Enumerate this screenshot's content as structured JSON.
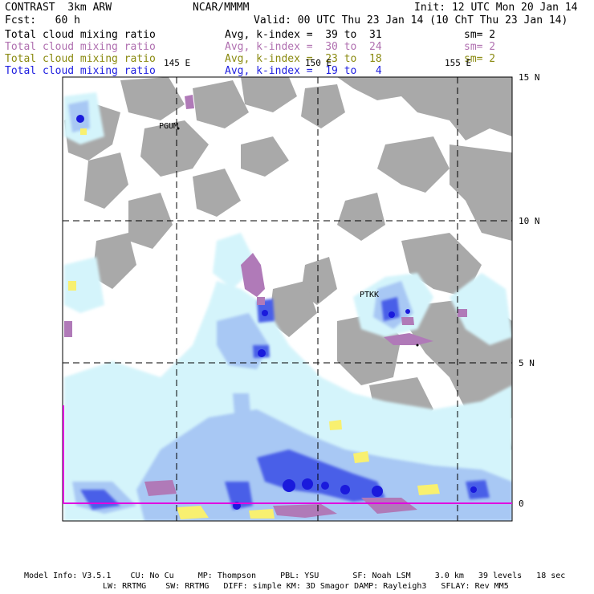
{
  "header": {
    "model": "CONTRAST  3km ARW",
    "agency": "NCAR/MMMM",
    "init": "Init: 12 UTC Mon 20 Jan 14",
    "fcst": "Fcst:   60 h",
    "valid": "Valid: 00 UTC Thu 23 Jan 14 (10 ChT Thu 23 Jan 14)"
  },
  "fields": [
    {
      "name": "Total cloud mixing ratio",
      "range": "Avg, k-index =  39 to  31",
      "sm": "sm= 2",
      "color": "#000000"
    },
    {
      "name": "Total cloud mixing ratio",
      "range": "Avg, k-index =  30 to  24",
      "sm": "sm= 2",
      "color": "#b070b0"
    },
    {
      "name": "Total cloud mixing ratio",
      "range": "Avg, k-index =  23 to  18",
      "sm": "sm= 2",
      "color": "#8a8a10"
    },
    {
      "name": "Total cloud mixing ratio",
      "range": "Avg, k-index =  19 to   4",
      "sm": "",
      "color": "#2020e0"
    }
  ],
  "lon_labels": [
    "145 E",
    "150 E",
    "155 E"
  ],
  "lat_labels": [
    "15 N",
    "10 N",
    "5 N",
    "0"
  ],
  "places": [
    "PGUM",
    "PTKK"
  ],
  "footer": {
    "line1": "Model Info: V3.5.1    CU: No Cu     MP: Thompson     PBL: YSU       SF: Noah LSM     3.0 km   39 levels   18 sec",
    "line2": "LW: RRTMG    SW: RRTMG   DIFF: simple KM: 3D Smagor DAMP: Rayleigh3   SFLAY: Rev MM5"
  },
  "colors": {
    "land": "#a9a9a9",
    "cloud_light": "#d4f4fb",
    "cloud_mid": "#a8c8f4",
    "cloud_deep": "#4a5ee8",
    "cloud_core": "#1a1adc",
    "cloud_purple": "#b07ab8",
    "cloud_yellow": "#f8f070",
    "accent_magenta": "#e000e0"
  }
}
